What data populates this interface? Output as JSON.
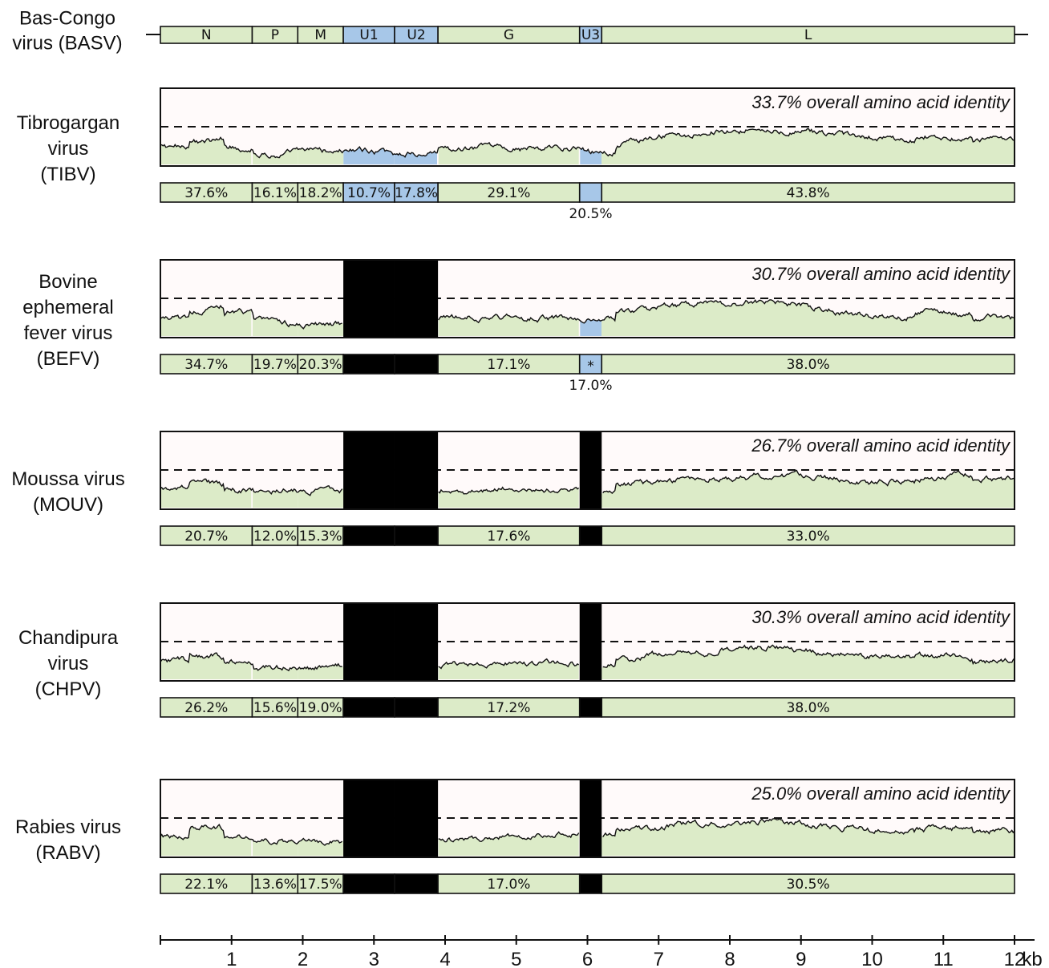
{
  "reference": {
    "label_lines": [
      "Bas-Congo",
      "virus (BASV)"
    ],
    "genes": [
      {
        "name": "N",
        "start": 0,
        "end": 1.29,
        "color": "green"
      },
      {
        "name": "P",
        "start": 1.29,
        "end": 1.93,
        "color": "green"
      },
      {
        "name": "M",
        "start": 1.93,
        "end": 2.57,
        "color": "green"
      },
      {
        "name": "U1",
        "start": 2.57,
        "end": 3.29,
        "color": "blue"
      },
      {
        "name": "U2",
        "start": 3.29,
        "end": 3.9,
        "color": "blue"
      },
      {
        "name": "G",
        "start": 3.9,
        "end": 5.89,
        "color": "green"
      },
      {
        "name": "U3",
        "start": 5.89,
        "end": 6.2,
        "color": "blue"
      },
      {
        "name": "L",
        "start": 6.2,
        "end": 12.0,
        "color": "green"
      }
    ]
  },
  "viruses": [
    {
      "label_lines": [
        "Tibrogargan",
        "virus",
        "(TIBV)"
      ],
      "identity": "33.7% overall amino acid identity",
      "missing": [],
      "segments": [
        "37.6%",
        "16.1%",
        "18.2%",
        "10.7%",
        "17.8%",
        "29.1%",
        "",
        "43.8%"
      ],
      "u3_label": "20.5%",
      "star": ""
    },
    {
      "label_lines": [
        "Bovine",
        "ephemeral",
        "fever virus",
        "(BEFV)"
      ],
      "identity": "30.7% overall amino acid identity",
      "missing": [
        "U1",
        "U2"
      ],
      "segments": [
        "34.7%",
        "19.7%",
        "20.3%",
        "",
        "",
        "17.1%",
        "",
        "38.0%"
      ],
      "u3_label": "17.0%",
      "star": "*"
    },
    {
      "label_lines": [
        "Moussa virus",
        "(MOUV)"
      ],
      "identity": "26.7% overall amino acid identity",
      "missing": [
        "U1",
        "U2",
        "U3"
      ],
      "segments": [
        "20.7%",
        "12.0%",
        "15.3%",
        "",
        "",
        "17.6%",
        "",
        "33.0%"
      ],
      "u3_label": "",
      "star": ""
    },
    {
      "label_lines": [
        "Chandipura",
        "virus",
        "(CHPV)"
      ],
      "identity": "30.3% overall amino acid identity",
      "missing": [
        "U1",
        "U2",
        "U3"
      ],
      "segments": [
        "26.2%",
        "15.6%",
        "19.0%",
        "",
        "",
        "17.2%",
        "",
        "38.0%"
      ],
      "u3_label": "",
      "star": ""
    },
    {
      "label_lines": [
        "Rabies virus",
        "(RABV)"
      ],
      "identity": "25.0% overall amino acid identity",
      "missing": [
        "U1",
        "U2",
        "U3"
      ],
      "segments": [
        "22.1%",
        "13.6%",
        "17.5%",
        "",
        "",
        "17.0%",
        "",
        "30.5%"
      ],
      "u3_label": "",
      "star": ""
    }
  ],
  "axis": {
    "ticks": [
      1,
      2,
      3,
      4,
      5,
      6,
      7,
      8,
      9,
      10,
      11,
      12
    ],
    "unit": "kb",
    "min": 0,
    "max": 12
  },
  "colors": {
    "gene_green": "#dcebc8",
    "gene_blue": "#a7c7e8",
    "missing": "#000000",
    "plot_bg": "#fffafa",
    "line": "#111111"
  }
}
